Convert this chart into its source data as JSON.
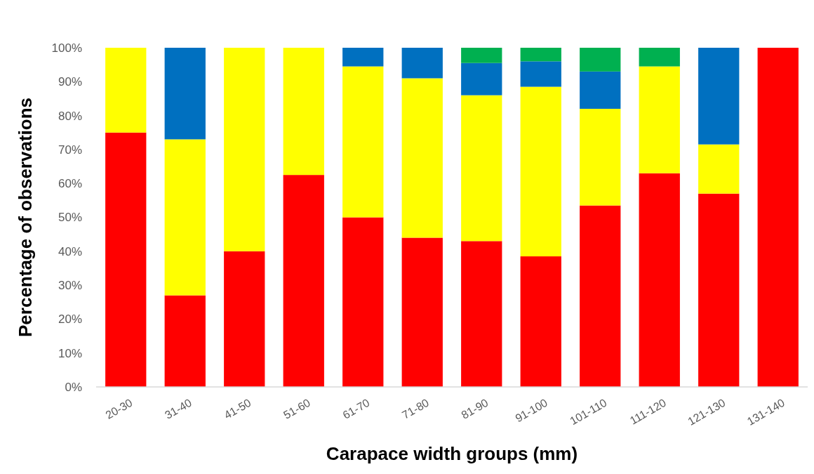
{
  "chart_data": {
    "type": "bar",
    "stacked": true,
    "xlabel": "Carapace width groups (mm)",
    "ylabel": "Percentage of observations",
    "categories": [
      "20-30",
      "31-40",
      "41-50",
      "51-60",
      "61-70",
      "71-80",
      "81-90",
      "91-100",
      "101-110",
      "111-120",
      "121-130",
      "131-140"
    ],
    "series": [
      {
        "color": "#ff0000",
        "values": [
          75,
          27,
          40,
          62.5,
          50,
          44,
          43,
          38.5,
          53.5,
          63,
          57,
          100
        ]
      },
      {
        "color": "#ffff00",
        "values": [
          25,
          46,
          60,
          37.5,
          44.5,
          47,
          43,
          50,
          28.5,
          31.5,
          14.5,
          0
        ]
      },
      {
        "color": "#0070c0",
        "values": [
          0,
          27,
          0,
          0,
          5.5,
          9,
          9.5,
          7.5,
          11,
          0,
          28.5,
          0
        ]
      },
      {
        "color": "#00b050",
        "values": [
          0,
          0,
          0,
          0,
          0,
          0,
          4.5,
          4,
          7,
          5.5,
          0,
          0
        ]
      }
    ],
    "ylim": [
      0,
      100
    ],
    "yticks": [
      {
        "value": 0,
        "label": "0%"
      },
      {
        "value": 10,
        "label": "10%"
      },
      {
        "value": 20,
        "label": "20%"
      },
      {
        "value": 30,
        "label": "30%"
      },
      {
        "value": 40,
        "label": "40%"
      },
      {
        "value": 50,
        "label": "50%"
      },
      {
        "value": 60,
        "label": "60%"
      },
      {
        "value": 70,
        "label": "70%"
      },
      {
        "value": 80,
        "label": "80%"
      },
      {
        "value": 90,
        "label": "90%"
      },
      {
        "value": 100,
        "label": "100%"
      }
    ]
  }
}
